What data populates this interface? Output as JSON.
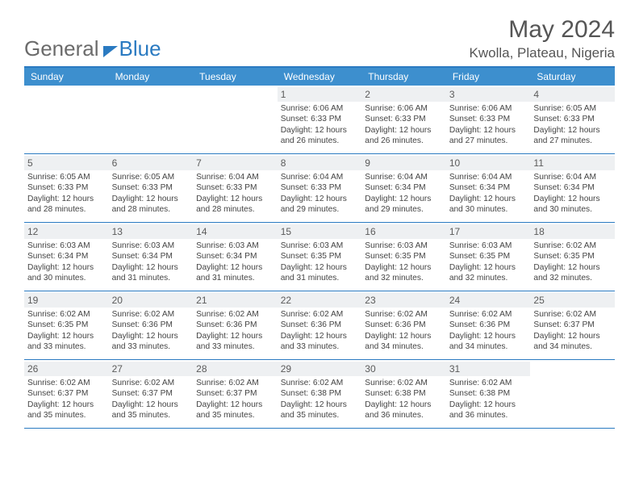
{
  "logo": {
    "part1": "General",
    "part2": "Blue"
  },
  "title": "May 2024",
  "location": "Kwolla, Plateau, Nigeria",
  "colors": {
    "header_bar": "#3d8fce",
    "border": "#2a7ac1",
    "daynum_bg": "#eef0f2",
    "text": "#444444",
    "logo_gray": "#6b6b6b",
    "logo_blue": "#2a7ac1",
    "background": "#ffffff"
  },
  "weekdays": [
    "Sunday",
    "Monday",
    "Tuesday",
    "Wednesday",
    "Thursday",
    "Friday",
    "Saturday"
  ],
  "weeks": [
    [
      {
        "day": "",
        "sunrise": "",
        "sunset": "",
        "daylight": ""
      },
      {
        "day": "",
        "sunrise": "",
        "sunset": "",
        "daylight": ""
      },
      {
        "day": "",
        "sunrise": "",
        "sunset": "",
        "daylight": ""
      },
      {
        "day": "1",
        "sunrise": "Sunrise: 6:06 AM",
        "sunset": "Sunset: 6:33 PM",
        "daylight": "Daylight: 12 hours and 26 minutes."
      },
      {
        "day": "2",
        "sunrise": "Sunrise: 6:06 AM",
        "sunset": "Sunset: 6:33 PM",
        "daylight": "Daylight: 12 hours and 26 minutes."
      },
      {
        "day": "3",
        "sunrise": "Sunrise: 6:06 AM",
        "sunset": "Sunset: 6:33 PM",
        "daylight": "Daylight: 12 hours and 27 minutes."
      },
      {
        "day": "4",
        "sunrise": "Sunrise: 6:05 AM",
        "sunset": "Sunset: 6:33 PM",
        "daylight": "Daylight: 12 hours and 27 minutes."
      }
    ],
    [
      {
        "day": "5",
        "sunrise": "Sunrise: 6:05 AM",
        "sunset": "Sunset: 6:33 PM",
        "daylight": "Daylight: 12 hours and 28 minutes."
      },
      {
        "day": "6",
        "sunrise": "Sunrise: 6:05 AM",
        "sunset": "Sunset: 6:33 PM",
        "daylight": "Daylight: 12 hours and 28 minutes."
      },
      {
        "day": "7",
        "sunrise": "Sunrise: 6:04 AM",
        "sunset": "Sunset: 6:33 PM",
        "daylight": "Daylight: 12 hours and 28 minutes."
      },
      {
        "day": "8",
        "sunrise": "Sunrise: 6:04 AM",
        "sunset": "Sunset: 6:33 PM",
        "daylight": "Daylight: 12 hours and 29 minutes."
      },
      {
        "day": "9",
        "sunrise": "Sunrise: 6:04 AM",
        "sunset": "Sunset: 6:34 PM",
        "daylight": "Daylight: 12 hours and 29 minutes."
      },
      {
        "day": "10",
        "sunrise": "Sunrise: 6:04 AM",
        "sunset": "Sunset: 6:34 PM",
        "daylight": "Daylight: 12 hours and 30 minutes."
      },
      {
        "day": "11",
        "sunrise": "Sunrise: 6:04 AM",
        "sunset": "Sunset: 6:34 PM",
        "daylight": "Daylight: 12 hours and 30 minutes."
      }
    ],
    [
      {
        "day": "12",
        "sunrise": "Sunrise: 6:03 AM",
        "sunset": "Sunset: 6:34 PM",
        "daylight": "Daylight: 12 hours and 30 minutes."
      },
      {
        "day": "13",
        "sunrise": "Sunrise: 6:03 AM",
        "sunset": "Sunset: 6:34 PM",
        "daylight": "Daylight: 12 hours and 31 minutes."
      },
      {
        "day": "14",
        "sunrise": "Sunrise: 6:03 AM",
        "sunset": "Sunset: 6:34 PM",
        "daylight": "Daylight: 12 hours and 31 minutes."
      },
      {
        "day": "15",
        "sunrise": "Sunrise: 6:03 AM",
        "sunset": "Sunset: 6:35 PM",
        "daylight": "Daylight: 12 hours and 31 minutes."
      },
      {
        "day": "16",
        "sunrise": "Sunrise: 6:03 AM",
        "sunset": "Sunset: 6:35 PM",
        "daylight": "Daylight: 12 hours and 32 minutes."
      },
      {
        "day": "17",
        "sunrise": "Sunrise: 6:03 AM",
        "sunset": "Sunset: 6:35 PM",
        "daylight": "Daylight: 12 hours and 32 minutes."
      },
      {
        "day": "18",
        "sunrise": "Sunrise: 6:02 AM",
        "sunset": "Sunset: 6:35 PM",
        "daylight": "Daylight: 12 hours and 32 minutes."
      }
    ],
    [
      {
        "day": "19",
        "sunrise": "Sunrise: 6:02 AM",
        "sunset": "Sunset: 6:35 PM",
        "daylight": "Daylight: 12 hours and 33 minutes."
      },
      {
        "day": "20",
        "sunrise": "Sunrise: 6:02 AM",
        "sunset": "Sunset: 6:36 PM",
        "daylight": "Daylight: 12 hours and 33 minutes."
      },
      {
        "day": "21",
        "sunrise": "Sunrise: 6:02 AM",
        "sunset": "Sunset: 6:36 PM",
        "daylight": "Daylight: 12 hours and 33 minutes."
      },
      {
        "day": "22",
        "sunrise": "Sunrise: 6:02 AM",
        "sunset": "Sunset: 6:36 PM",
        "daylight": "Daylight: 12 hours and 33 minutes."
      },
      {
        "day": "23",
        "sunrise": "Sunrise: 6:02 AM",
        "sunset": "Sunset: 6:36 PM",
        "daylight": "Daylight: 12 hours and 34 minutes."
      },
      {
        "day": "24",
        "sunrise": "Sunrise: 6:02 AM",
        "sunset": "Sunset: 6:36 PM",
        "daylight": "Daylight: 12 hours and 34 minutes."
      },
      {
        "day": "25",
        "sunrise": "Sunrise: 6:02 AM",
        "sunset": "Sunset: 6:37 PM",
        "daylight": "Daylight: 12 hours and 34 minutes."
      }
    ],
    [
      {
        "day": "26",
        "sunrise": "Sunrise: 6:02 AM",
        "sunset": "Sunset: 6:37 PM",
        "daylight": "Daylight: 12 hours and 35 minutes."
      },
      {
        "day": "27",
        "sunrise": "Sunrise: 6:02 AM",
        "sunset": "Sunset: 6:37 PM",
        "daylight": "Daylight: 12 hours and 35 minutes."
      },
      {
        "day": "28",
        "sunrise": "Sunrise: 6:02 AM",
        "sunset": "Sunset: 6:37 PM",
        "daylight": "Daylight: 12 hours and 35 minutes."
      },
      {
        "day": "29",
        "sunrise": "Sunrise: 6:02 AM",
        "sunset": "Sunset: 6:38 PM",
        "daylight": "Daylight: 12 hours and 35 minutes."
      },
      {
        "day": "30",
        "sunrise": "Sunrise: 6:02 AM",
        "sunset": "Sunset: 6:38 PM",
        "daylight": "Daylight: 12 hours and 36 minutes."
      },
      {
        "day": "31",
        "sunrise": "Sunrise: 6:02 AM",
        "sunset": "Sunset: 6:38 PM",
        "daylight": "Daylight: 12 hours and 36 minutes."
      },
      {
        "day": "",
        "sunrise": "",
        "sunset": "",
        "daylight": ""
      }
    ]
  ]
}
